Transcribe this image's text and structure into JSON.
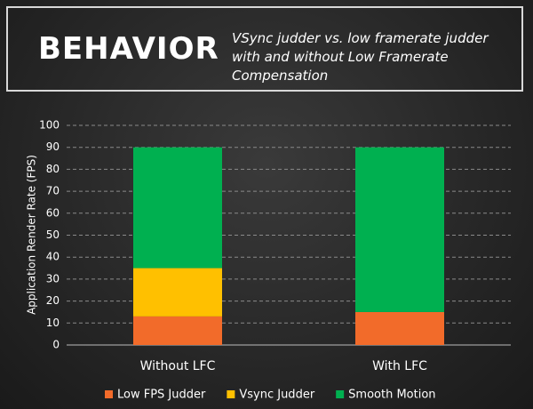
{
  "chart_data": {
    "type": "stacked_bar",
    "title": "BEHAVIOR",
    "subtitle": "VSync judder vs. low framerate judder with and without Low Framerate Compensation",
    "y_label": "Application Render Rate (FPS)",
    "categories": [
      "Without LFC",
      "With LFC"
    ],
    "series": [
      {
        "name": "Low FPS Judder",
        "color": "#f26b2a",
        "values": [
          13,
          15
        ]
      },
      {
        "name": "Vsync Judder",
        "color": "#ffc000",
        "values": [
          22,
          0
        ]
      },
      {
        "name": "Smooth Motion",
        "color": "#00b050",
        "values": [
          55,
          75
        ]
      }
    ],
    "ylim": [
      0,
      100
    ],
    "yticks": [
      0,
      10,
      20,
      30,
      40,
      50,
      60,
      70,
      80,
      90,
      100
    ],
    "grid": true,
    "legend": "bottom"
  }
}
